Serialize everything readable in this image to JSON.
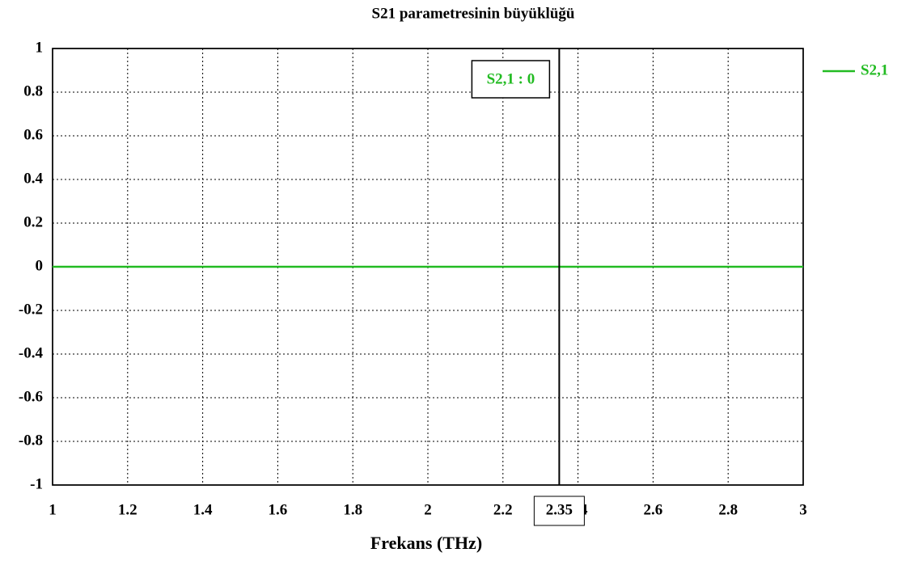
{
  "chart_data": {
    "type": "line",
    "title": "S21 parametresinin büyüklüğü",
    "x_label": "Frekans (THz)",
    "x": [
      1,
      3
    ],
    "series": [
      {
        "name": "S2,1",
        "color": "#22bb22",
        "values": [
          0,
          0
        ]
      }
    ],
    "xlim": [
      1,
      3
    ],
    "xticks": [
      1,
      1.2,
      1.4,
      1.6,
      1.8,
      2,
      2.2,
      2.4,
      2.6,
      2.8,
      3
    ],
    "ylim": [
      -1,
      1
    ],
    "yticks": [
      -1,
      -0.8,
      -0.6,
      -0.4,
      -0.2,
      0,
      0.2,
      0.4,
      0.6,
      0.8,
      1
    ],
    "grid": true,
    "legend": "right",
    "marker": {
      "x": 2.35,
      "label": "S2,1 : 0"
    }
  }
}
